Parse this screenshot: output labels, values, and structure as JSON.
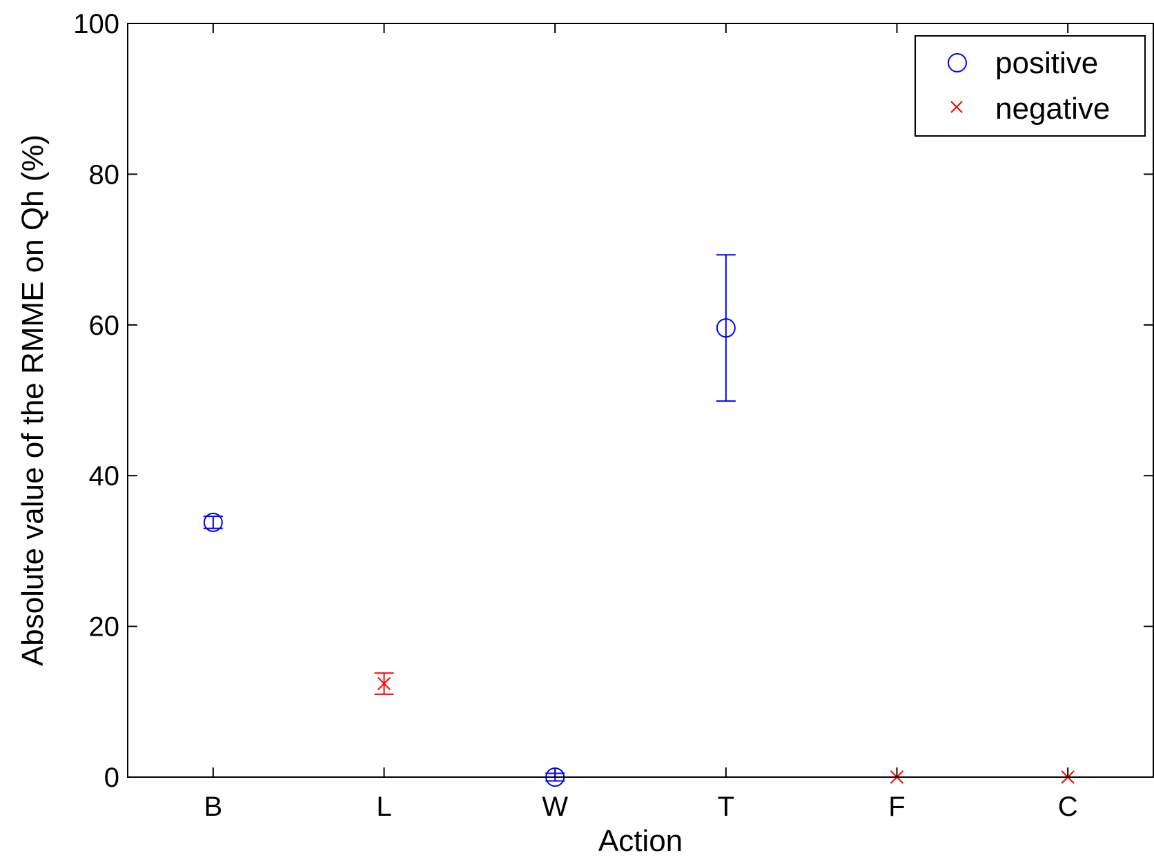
{
  "chart_data": {
    "type": "scatter",
    "title": "",
    "xlabel": "Action",
    "ylabel": "Absolute value of the RMME on Qh (%)",
    "categories": [
      "B",
      "L",
      "W",
      "T",
      "F",
      "C"
    ],
    "ylim": [
      0,
      100
    ],
    "yticks": [
      0,
      20,
      40,
      60,
      80,
      100
    ],
    "grid": false,
    "legend_position": "top-right",
    "series": [
      {
        "name": "positive",
        "marker": "circle",
        "color": "#0000ff",
        "points": [
          {
            "category": "B",
            "value": 33.8,
            "error": 0.8
          },
          {
            "category": "W",
            "value": 0.0,
            "error": 0.5
          },
          {
            "category": "T",
            "value": 59.6,
            "error": 9.7
          }
        ]
      },
      {
        "name": "negative",
        "marker": "x",
        "color": "#ff0000",
        "points": [
          {
            "category": "L",
            "value": 12.4,
            "error": 1.4
          },
          {
            "category": "F",
            "value": 0.0,
            "error": 0.0
          },
          {
            "category": "C",
            "value": 0.0,
            "error": 0.0
          }
        ]
      }
    ]
  }
}
